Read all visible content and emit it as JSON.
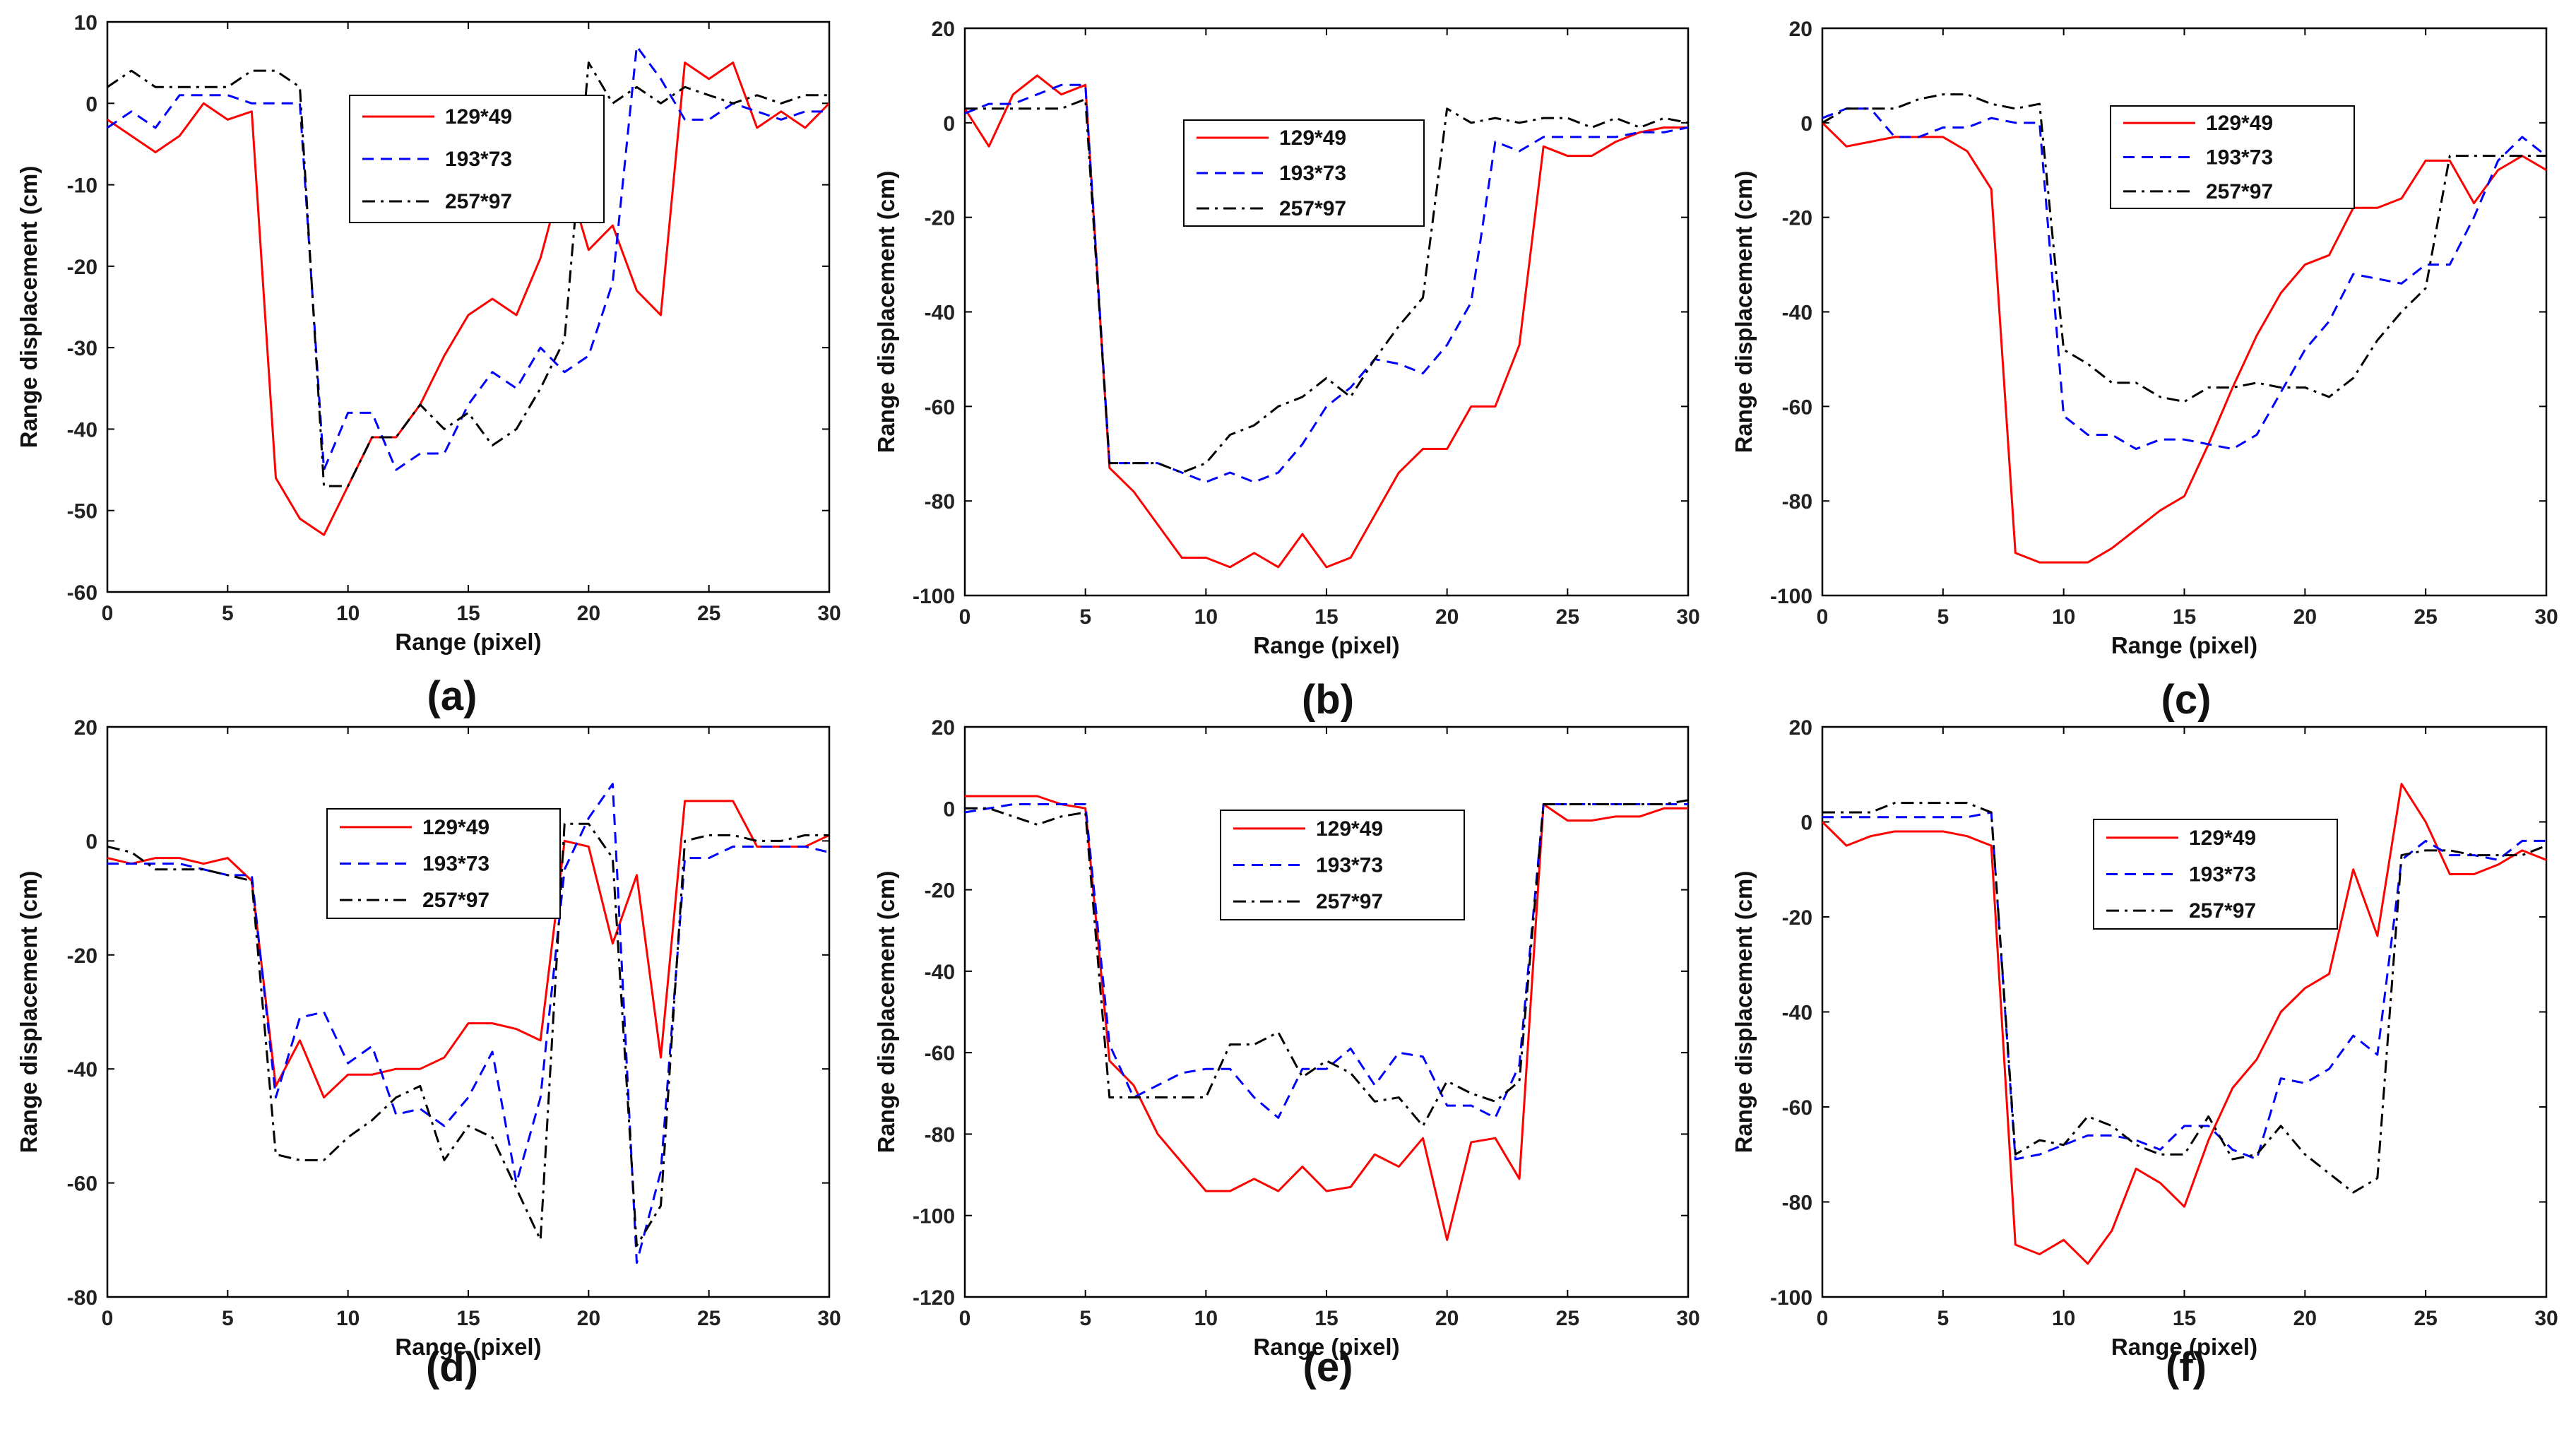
{
  "figure": {
    "series_styles": [
      {
        "name": "129*49",
        "color": "#ff0000",
        "dash": "solid"
      },
      {
        "name": "193*73",
        "color": "#0000ff",
        "dash": "dashed"
      },
      {
        "name": "257*97",
        "color": "#000000",
        "dash": "dashdot"
      }
    ]
  },
  "chart_data": [
    {
      "type": "line",
      "panel_label": "(a)",
      "xlabel": "Range (pixel)",
      "ylabel": "Range displacement (cm)",
      "xlim": [
        0,
        30
      ],
      "ylim": [
        -60,
        10
      ],
      "xticks": [
        0,
        5,
        10,
        15,
        20,
        25,
        30
      ],
      "yticks": [
        -60,
        -50,
        -40,
        -30,
        -20,
        -10,
        0,
        10
      ],
      "legend_position": "top-center",
      "x": [
        0,
        1,
        2,
        3,
        4,
        5,
        6,
        7,
        8,
        9,
        10,
        11,
        12,
        13,
        14,
        15,
        16,
        17,
        18,
        19,
        20,
        21,
        22,
        23,
        24,
        25,
        26,
        27,
        28,
        29,
        30
      ],
      "series": [
        {
          "name": "129*49",
          "values": [
            -2,
            -4,
            -6,
            -4,
            0,
            -2,
            -1,
            -46,
            -51,
            -53,
            -47,
            -41,
            -41,
            -37,
            -31,
            -26,
            -24,
            -26,
            -19,
            -8,
            -18,
            -15,
            -23,
            -26,
            5,
            3,
            5,
            -3,
            -1,
            -3,
            0
          ]
        },
        {
          "name": "193*73",
          "values": [
            -3,
            -1,
            -3,
            1,
            1,
            1,
            0,
            0,
            0,
            -45,
            -38,
            -38,
            -45,
            -43,
            -43,
            -37,
            -33,
            -35,
            -30,
            -33,
            -31,
            -22,
            7,
            3,
            -2,
            -2,
            0,
            -1,
            -2,
            -1,
            -1
          ]
        },
        {
          "name": "257*97",
          "values": [
            2,
            4,
            2,
            2,
            2,
            2,
            4,
            4,
            2,
            -47,
            -47,
            -41,
            -41,
            -37,
            -40,
            -38,
            -42,
            -40,
            -35,
            -29,
            5,
            0,
            2,
            0,
            2,
            1,
            0,
            1,
            0,
            1,
            1
          ]
        }
      ]
    },
    {
      "type": "line",
      "panel_label": "(b)",
      "xlabel": "Range (pixel)",
      "ylabel": "Range displacement (cm)",
      "xlim": [
        0,
        30
      ],
      "ylim": [
        -100,
        20
      ],
      "xticks": [
        0,
        5,
        10,
        15,
        20,
        25,
        30
      ],
      "yticks": [
        -100,
        -80,
        -60,
        -40,
        -20,
        0,
        20
      ],
      "legend_position": "top-center",
      "x": [
        0,
        1,
        2,
        3,
        4,
        5,
        6,
        7,
        8,
        9,
        10,
        11,
        12,
        13,
        14,
        15,
        16,
        17,
        18,
        19,
        20,
        21,
        22,
        23,
        24,
        25,
        26,
        27,
        28,
        29,
        30
      ],
      "series": [
        {
          "name": "129*49",
          "values": [
            3,
            -5,
            6,
            10,
            6,
            8,
            -73,
            -78,
            -85,
            -92,
            -92,
            -94,
            -91,
            -94,
            -87,
            -94,
            -92,
            -83,
            -74,
            -69,
            -69,
            -60,
            -60,
            -47,
            -5,
            -7,
            -7,
            -4,
            -2,
            -1,
            -1
          ]
        },
        {
          "name": "193*73",
          "values": [
            2,
            4,
            4,
            6,
            8,
            8,
            -72,
            -72,
            -72,
            -74,
            -76,
            -74,
            -76,
            -74,
            -68,
            -60,
            -56,
            -50,
            -51,
            -53,
            -47,
            -38,
            -4,
            -6,
            -3,
            -3,
            -3,
            -3,
            -2,
            -2,
            -1
          ]
        },
        {
          "name": "257*97",
          "values": [
            3,
            3,
            3,
            3,
            3,
            5,
            -72,
            -72,
            -72,
            -74,
            -72,
            -66,
            -64,
            -60,
            -58,
            -54,
            -58,
            -50,
            -43,
            -37,
            3,
            0,
            1,
            0,
            1,
            1,
            -1,
            1,
            -1,
            1,
            0
          ]
        }
      ]
    },
    {
      "type": "line",
      "panel_label": "(c)",
      "xlabel": "Range (pixel)",
      "ylabel": "Range displacement (cm)",
      "xlim": [
        0,
        30
      ],
      "ylim": [
        -100,
        20
      ],
      "xticks": [
        0,
        5,
        10,
        15,
        20,
        25,
        30
      ],
      "yticks": [
        -100,
        -80,
        -60,
        -40,
        -20,
        0,
        20
      ],
      "legend_position": "top-center",
      "x": [
        0,
        1,
        2,
        3,
        4,
        5,
        6,
        7,
        8,
        9,
        10,
        11,
        12,
        13,
        14,
        15,
        16,
        17,
        18,
        19,
        20,
        21,
        22,
        23,
        24,
        25,
        26,
        27,
        28,
        29,
        30
      ],
      "series": [
        {
          "name": "129*49",
          "values": [
            0,
            -5,
            -4,
            -3,
            -3,
            -3,
            -6,
            -14,
            -91,
            -93,
            -93,
            -93,
            -90,
            -86,
            -82,
            -79,
            -68,
            -56,
            -45,
            -36,
            -30,
            -28,
            -18,
            -18,
            -16,
            -8,
            -8,
            -17,
            -10,
            -7,
            -10
          ]
        },
        {
          "name": "193*73",
          "values": [
            1,
            3,
            3,
            -3,
            -3,
            -1,
            -1,
            1,
            0,
            0,
            -62,
            -66,
            -66,
            -69,
            -67,
            -67,
            -68,
            -69,
            -66,
            -57,
            -48,
            -42,
            -32,
            -33,
            -34,
            -30,
            -30,
            -20,
            -8,
            -3,
            -7
          ]
        },
        {
          "name": "257*97",
          "values": [
            0,
            3,
            3,
            3,
            5,
            6,
            6,
            4,
            3,
            4,
            -48,
            -51,
            -55,
            -55,
            -58,
            -59,
            -56,
            -56,
            -55,
            -56,
            -56,
            -58,
            -54,
            -46,
            -40,
            -35,
            -7,
            -7,
            -7,
            -7,
            -7
          ]
        }
      ]
    },
    {
      "type": "line",
      "panel_label": "(d)",
      "xlabel": "Range (pixel)",
      "ylabel": "Range displacement (cm)",
      "xlim": [
        0,
        30
      ],
      "ylim": [
        -80,
        20
      ],
      "xticks": [
        0,
        5,
        10,
        15,
        20,
        25,
        30
      ],
      "yticks": [
        -80,
        -60,
        -40,
        -20,
        0,
        20
      ],
      "legend_position": "top-center",
      "x": [
        0,
        1,
        2,
        3,
        4,
        5,
        6,
        7,
        8,
        9,
        10,
        11,
        12,
        13,
        14,
        15,
        16,
        17,
        18,
        19,
        20,
        21,
        22,
        23,
        24,
        25,
        26,
        27,
        28,
        29,
        30
      ],
      "series": [
        {
          "name": "129*49",
          "values": [
            -3,
            -4,
            -3,
            -3,
            -4,
            -3,
            -7,
            -43,
            -35,
            -45,
            -41,
            -41,
            -40,
            -40,
            -38,
            -32,
            -32,
            -33,
            -35,
            0,
            -1,
            -18,
            -6,
            -38,
            7,
            7,
            7,
            -1,
            -1,
            -1,
            1
          ]
        },
        {
          "name": "193*73",
          "values": [
            -4,
            -4,
            -4,
            -4,
            -5,
            -6,
            -6,
            -45,
            -31,
            -30,
            -39,
            -36,
            -48,
            -47,
            -50,
            -45,
            -37,
            -60,
            -45,
            -5,
            4,
            10,
            -74,
            -58,
            -3,
            -3,
            -1,
            -1,
            -1,
            -1,
            -2
          ]
        },
        {
          "name": "257*97",
          "values": [
            -1,
            -2,
            -5,
            -5,
            -5,
            -6,
            -7,
            -55,
            -56,
            -56,
            -52,
            -49,
            -45,
            -43,
            -56,
            -50,
            -52,
            -61,
            -70,
            3,
            3,
            -3,
            -71,
            -64,
            0,
            1,
            1,
            0,
            0,
            1,
            1
          ]
        }
      ]
    },
    {
      "type": "line",
      "panel_label": "(e)",
      "xlabel": "Range (pixel)",
      "ylabel": "Range displacement (cm)",
      "xlim": [
        0,
        30
      ],
      "ylim": [
        -120,
        20
      ],
      "xticks": [
        0,
        5,
        10,
        15,
        20,
        25,
        30
      ],
      "yticks": [
        -120,
        -100,
        -80,
        -60,
        -40,
        -20,
        0,
        20
      ],
      "legend_position": "top-center",
      "x": [
        0,
        1,
        2,
        3,
        4,
        5,
        6,
        7,
        8,
        9,
        10,
        11,
        12,
        13,
        14,
        15,
        16,
        17,
        18,
        19,
        20,
        21,
        22,
        23,
        24,
        25,
        26,
        27,
        28,
        29,
        30
      ],
      "series": [
        {
          "name": "129*49",
          "values": [
            3,
            3,
            3,
            3,
            1,
            0,
            -62,
            -68,
            -80,
            -87,
            -94,
            -94,
            -91,
            -94,
            -88,
            -94,
            -93,
            -85,
            -88,
            -81,
            -106,
            -82,
            -81,
            -91,
            1,
            -3,
            -3,
            -2,
            -2,
            0,
            0
          ]
        },
        {
          "name": "193*73",
          "values": [
            -1,
            0,
            1,
            1,
            1,
            1,
            -58,
            -71,
            -68,
            -65,
            -64,
            -64,
            -71,
            -76,
            -64,
            -64,
            -59,
            -68,
            -60,
            -61,
            -73,
            -73,
            -76,
            -63,
            1,
            1,
            1,
            1,
            1,
            1,
            1
          ]
        },
        {
          "name": "257*97",
          "values": [
            0,
            0,
            -2,
            -4,
            -2,
            -1,
            -71,
            -71,
            -71,
            -71,
            -71,
            -58,
            -58,
            -55,
            -66,
            -62,
            -65,
            -72,
            -71,
            -78,
            -67,
            -70,
            -72,
            -67,
            1,
            1,
            1,
            1,
            1,
            1,
            2
          ]
        }
      ]
    },
    {
      "type": "line",
      "panel_label": "(f)",
      "xlabel": "Range (pixel)",
      "ylabel": "Range displacement (cm)",
      "xlim": [
        0,
        30
      ],
      "ylim": [
        -100,
        20
      ],
      "xticks": [
        0,
        5,
        10,
        15,
        20,
        25,
        30
      ],
      "yticks": [
        -100,
        -80,
        -60,
        -40,
        -20,
        0,
        20
      ],
      "legend_position": "top-center",
      "x": [
        0,
        1,
        2,
        3,
        4,
        5,
        6,
        7,
        8,
        9,
        10,
        11,
        12,
        13,
        14,
        15,
        16,
        17,
        18,
        19,
        20,
        21,
        22,
        23,
        24,
        25,
        26,
        27,
        28,
        29,
        30
      ],
      "series": [
        {
          "name": "129*49",
          "values": [
            0,
            -5,
            -3,
            -2,
            -2,
            -2,
            -3,
            -5,
            -89,
            -91,
            -88,
            -93,
            -86,
            -73,
            -76,
            -81,
            -67,
            -56,
            -50,
            -40,
            -35,
            -32,
            -10,
            -24,
            8,
            0,
            -11,
            -11,
            -9,
            -6,
            -8
          ]
        },
        {
          "name": "193*73",
          "values": [
            1,
            1,
            1,
            1,
            1,
            1,
            1,
            2,
            -71,
            -70,
            -68,
            -66,
            -66,
            -67,
            -69,
            -64,
            -64,
            -69,
            -71,
            -54,
            -55,
            -52,
            -45,
            -49,
            -8,
            -4,
            -7,
            -7,
            -8,
            -4,
            -4
          ]
        },
        {
          "name": "257*97",
          "values": [
            2,
            2,
            2,
            4,
            4,
            4,
            4,
            2,
            -70,
            -67,
            -68,
            -62,
            -64,
            -68,
            -70,
            -70,
            -62,
            -71,
            -70,
            -64,
            -70,
            -74,
            -78,
            -75,
            -7,
            -6,
            -6,
            -7,
            -7,
            -7,
            -5
          ]
        }
      ]
    }
  ]
}
